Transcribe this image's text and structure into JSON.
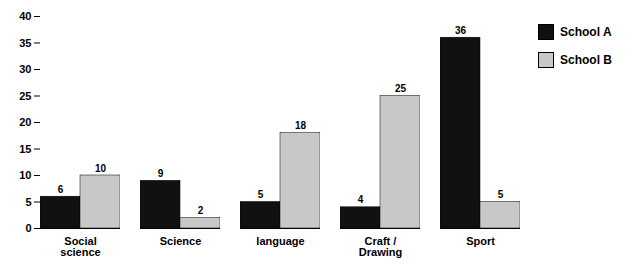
{
  "chart_data": {
    "type": "bar",
    "categories": [
      "Social\nscience",
      "Science",
      "language",
      "Craft /\nDrawing",
      "Sport"
    ],
    "series": [
      {
        "name": "School A",
        "color": "#111111",
        "values": [
          6,
          9,
          5,
          4,
          36
        ]
      },
      {
        "name": "School B",
        "color": "#c8c8c8",
        "values": [
          10,
          2,
          18,
          25,
          5
        ]
      }
    ],
    "ylim": [
      0,
      40
    ],
    "yticks": [
      0,
      5,
      10,
      15,
      20,
      25,
      30,
      35,
      40
    ],
    "data_labels": true,
    "legend": "right"
  }
}
